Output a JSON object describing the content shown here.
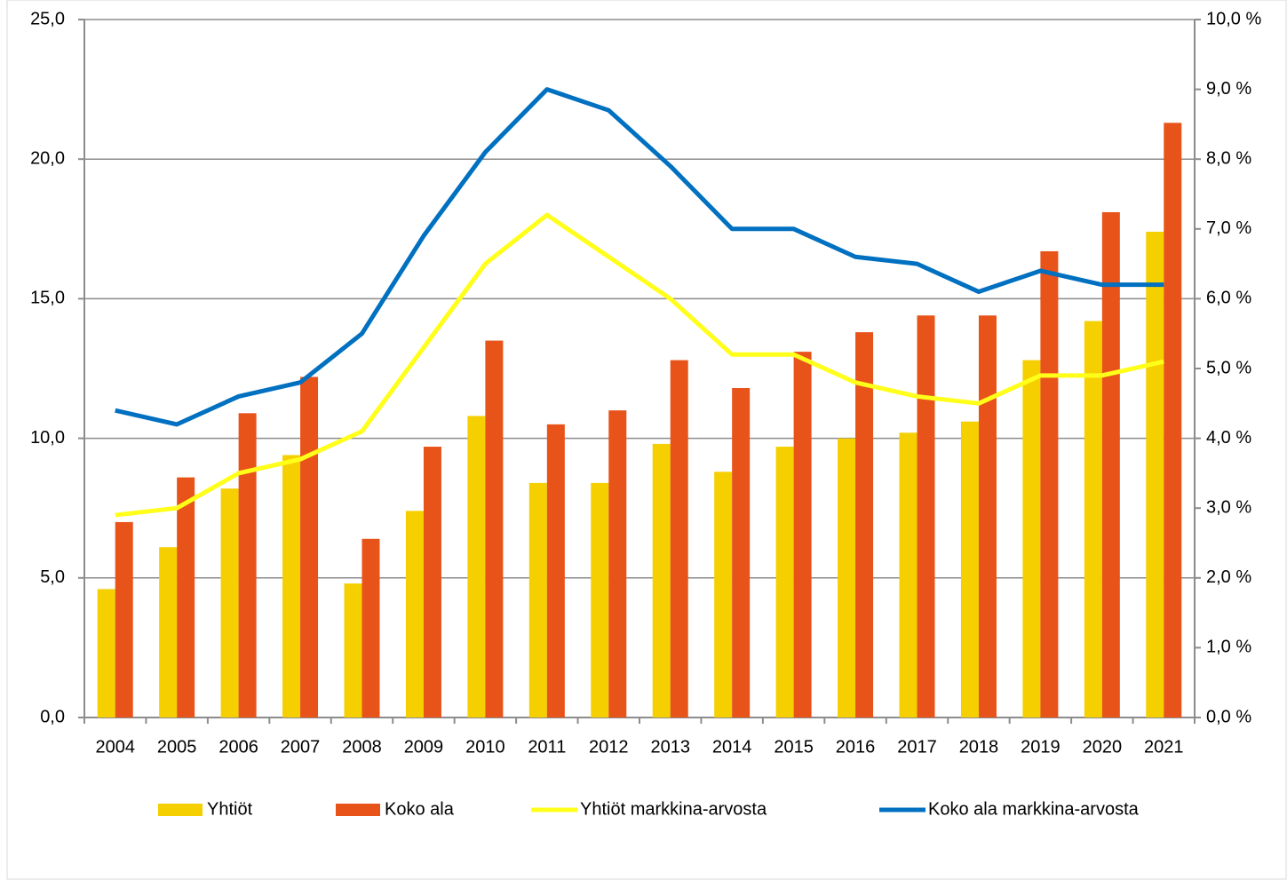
{
  "chart_data": {
    "type": "bar",
    "categories": [
      "2004",
      "2005",
      "2006",
      "2007",
      "2008",
      "2009",
      "2010",
      "2011",
      "2012",
      "2013",
      "2014",
      "2015",
      "2016",
      "2017",
      "2018",
      "2019",
      "2020",
      "2021"
    ],
    "series": [
      {
        "name": "Yhtiöt",
        "type": "bar",
        "color": "#f5cf00",
        "values": [
          4.6,
          6.1,
          8.2,
          9.4,
          4.8,
          7.4,
          10.8,
          8.4,
          8.4,
          9.8,
          8.8,
          9.7,
          10.0,
          10.2,
          10.6,
          12.8,
          14.2,
          17.4
        ]
      },
      {
        "name": "Koko ala",
        "type": "bar",
        "color": "#e8531a",
        "values": [
          7.0,
          8.6,
          10.9,
          12.2,
          6.4,
          9.7,
          13.5,
          10.5,
          11.0,
          12.8,
          11.8,
          13.1,
          13.8,
          14.4,
          14.4,
          16.7,
          18.1,
          21.3
        ]
      },
      {
        "name": "Yhtiöt markkina-arvosta",
        "type": "line",
        "axis": "y2",
        "color": "#ffff1a",
        "values": [
          2.9,
          3.0,
          3.5,
          3.7,
          4.1,
          5.3,
          6.5,
          7.2,
          6.6,
          6.0,
          5.2,
          5.2,
          4.8,
          4.6,
          4.5,
          4.9,
          4.9,
          5.1
        ]
      },
      {
        "name": "Koko ala markkina-arvosta",
        "type": "line",
        "axis": "y2",
        "color": "#0070c0",
        "values": [
          4.4,
          4.2,
          4.6,
          4.8,
          5.5,
          6.9,
          8.1,
          9.0,
          8.7,
          7.9,
          7.0,
          7.0,
          6.6,
          6.5,
          6.1,
          6.4,
          6.2,
          6.2
        ]
      }
    ],
    "ylim": [
      0,
      25
    ],
    "yticks": [
      {
        "value": 0,
        "label": "0,0"
      },
      {
        "value": 5,
        "label": "5,0"
      },
      {
        "value": 10,
        "label": "10,0"
      },
      {
        "value": 15,
        "label": "15,0"
      },
      {
        "value": 20,
        "label": "20,0"
      },
      {
        "value": 25,
        "label": "25,0"
      }
    ],
    "y2lim": [
      0,
      10
    ],
    "y2ticks": [
      {
        "value": 0,
        "label": "0,0 %"
      },
      {
        "value": 1,
        "label": "1,0 %"
      },
      {
        "value": 2,
        "label": "2,0 %"
      },
      {
        "value": 3,
        "label": "3,0 %"
      },
      {
        "value": 4,
        "label": "4,0 %"
      },
      {
        "value": 5,
        "label": "5,0 %"
      },
      {
        "value": 6,
        "label": "6,0 %"
      },
      {
        "value": 7,
        "label": "7,0 %"
      },
      {
        "value": 8,
        "label": "8,0 %"
      },
      {
        "value": 9,
        "label": "9,0 %"
      },
      {
        "value": 10,
        "label": "10,0 %"
      }
    ],
    "grid": true,
    "legend": "bottom"
  }
}
